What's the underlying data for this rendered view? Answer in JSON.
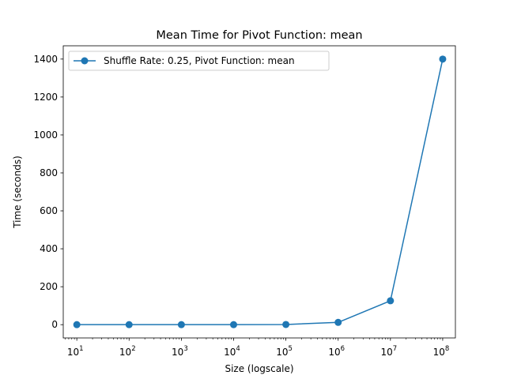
{
  "chart_data": {
    "type": "line",
    "title": "Mean Time for Pivot Function: mean",
    "xlabel": "Size (logscale)",
    "ylabel": "Time (seconds)",
    "xscale": "log",
    "xlim": [
      5.5,
      175000000
    ],
    "ylim": [
      -70,
      1470
    ],
    "grid": false,
    "legend_position": "top-left",
    "x_tick_base": "10",
    "x_tick_exponents": [
      "1",
      "2",
      "3",
      "4",
      "5",
      "6",
      "7",
      "8"
    ],
    "y_ticks": [
      0,
      200,
      400,
      600,
      800,
      1000,
      1200,
      1400
    ],
    "series": [
      {
        "name": "Shuffle Rate: 0.25, Pivot Function: mean",
        "color": "#1f77b4",
        "marker": "circle",
        "x": [
          10,
          100,
          1000,
          10000,
          100000,
          1000000,
          10000000,
          100000000
        ],
        "y": [
          0,
          0,
          0,
          0,
          1,
          12,
          126,
          1400
        ]
      }
    ]
  }
}
